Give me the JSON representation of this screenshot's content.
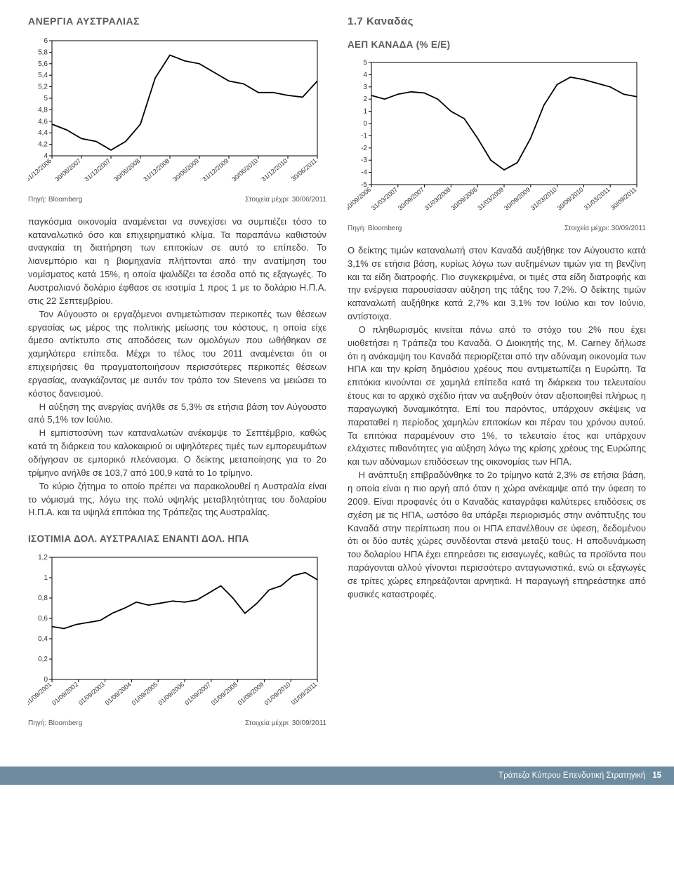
{
  "left": {
    "chart1": {
      "title": "ΑΝΕΡΓΙΑ ΑΥΣΤΡΑΛΙΑΣ",
      "type": "line",
      "ylim": [
        4,
        6
      ],
      "ytick_step": 0.2,
      "yticks": [
        "4",
        "4,2",
        "4,4",
        "4,6",
        "4,8",
        "5",
        "5,2",
        "5,4",
        "5,6",
        "5,8",
        "6"
      ],
      "x_labels": [
        "31/12/2006",
        "30/06/2007",
        "31/12/2007",
        "30/06/2008",
        "31/12/2008",
        "30/06/2009",
        "31/12/2009",
        "30/06/2010",
        "31/12/2010",
        "30/06/2011"
      ],
      "values": [
        4.55,
        4.45,
        4.3,
        4.25,
        4.1,
        4.25,
        4.55,
        5.35,
        5.75,
        5.65,
        5.6,
        5.45,
        5.3,
        5.25,
        5.1,
        5.1,
        5.05,
        5.02,
        5.3
      ],
      "line_color": "#000000",
      "background_color": "#ffffff",
      "source_label": "Πηγή: Bloomberg",
      "asof_label": "Στοιχεία μέχρι: 30/06/2011"
    },
    "para1": "παγκόσμια οικονομία αναμένεται να συνεχίσει να συμπιέζει τόσο το καταναλωτικό όσο και επιχειρηματικό κλίμα. Τα παραπάνω καθιστούν αναγκαία τη διατήρηση των επιτοκίων σε αυτό το επίπεδο. Το λιανεμπόριο και η βιομηχανία πλήττονται από την ανατίμηση του νομίσματος κατά 15%, η οποία ψαλιδίζει τα έσοδα από τις εξαγωγές. Το Αυστραλιανό δολάριο έφθασε σε ισοτιμία 1 προς 1 με το δολάριο Η.Π.Α. στις 22 Σεπτεμβρίου.",
    "para2": "Τον Αύγουστο οι εργαζόμενοι αντιμετώπισαν περικοπές των θέσεων εργασίας ως μέρος της πολιτικής μείωσης του κόστους, η οποία είχε άμεσο αντίκτυπο στις αποδόσεις των ομολόγων που ωθήθηκαν σε χαμηλότερα επίπεδα. Μέχρι το τέλος του 2011 αναμένεται ότι οι επιχειρήσεις θα πραγματοποιήσουν περισσότερες περικοπές θέσεων εργασίας, αναγκάζοντας με αυτόν τον τρόπο τον Stevens να μειώσει το κόστος δανεισμού.",
    "para3": "Η αύξηση της ανεργίας ανήλθε σε 5,3% σε ετήσια βάση τον Αύγουστο από 5,1% τον Ιούλιο.",
    "para4": "Η εμπιστοσύνη των καταναλωτών ανέκαμψε το Σεπτέμβριο, καθώς κατά τη διάρκεια του καλοκαιριού οι υψηλότερες τιμές των εμπορευμάτων οδήγησαν σε εμπορικό πλεόνασμα. Ο δείκτης μεταποίησης για το 2ο τρίμηνο ανήλθε σε 103,7 από 100,9 κατά το 1ο τρίμηνο.",
    "para5": "Το κύριο ζήτημα το οποίο πρέπει να παρακολουθεί η Αυστραλία είναι το νόμισμά της, λόγω της πολύ υψηλής μεταβλητότητας του δολαρίου Η.Π.Α. και τα υψηλά επιτόκια της Τράπεζας της Αυστραλίας.",
    "chart2": {
      "title": "ΙΣΟΤΙΜΙΑ ΔΟΛ. ΑΥΣΤΡΑΛΙΑΣ ΕΝΑΝΤΙ ΔΟΛ. ΗΠΑ",
      "type": "line",
      "ylim": [
        0,
        1.2
      ],
      "ytick_step": 0.2,
      "yticks": [
        "0",
        "0,2",
        "0,4",
        "0,6",
        "0,8",
        "1",
        "1,2"
      ],
      "x_labels": [
        "01/09/2001",
        "01/09/2002",
        "01/09/2003",
        "01/09/2004",
        "01/09/2005",
        "01/09/2006",
        "01/09/2007",
        "01/09/2008",
        "01/09/2009",
        "01/09/2010",
        "01/09/2011"
      ],
      "values": [
        0.52,
        0.5,
        0.54,
        0.56,
        0.58,
        0.65,
        0.7,
        0.76,
        0.73,
        0.75,
        0.77,
        0.76,
        0.78,
        0.85,
        0.92,
        0.8,
        0.65,
        0.75,
        0.88,
        0.92,
        1.02,
        1.05,
        0.98
      ],
      "line_color": "#000000",
      "background_color": "#ffffff",
      "source_label": "Πηγή: Bloomberg",
      "asof_label": "Στοιχεία μέχρι: 30/09/2011"
    }
  },
  "right": {
    "section_title": "1.7 Καναδάς",
    "chart1": {
      "title": "ΑΕΠ ΚΑΝΑΔΑ (% Ε/Ε)",
      "type": "line",
      "ylim": [
        -5,
        5
      ],
      "ytick_step": 1,
      "yticks": [
        "-5",
        "-4",
        "-3",
        "-2",
        "-1",
        "0",
        "1",
        "2",
        "3",
        "4",
        "5"
      ],
      "x_labels": [
        "30/09/2006",
        "31/03/2007",
        "30/09/2007",
        "31/03/2008",
        "30/09/2008",
        "31/03/2009",
        "30/09/2009",
        "31/03/2010",
        "30/09/2010",
        "31/03/2011",
        "30/09/2011"
      ],
      "values": [
        2.3,
        2.0,
        2.4,
        2.6,
        2.5,
        2.0,
        1.0,
        0.4,
        -1.2,
        -3.0,
        -3.8,
        -3.2,
        -1.2,
        1.5,
        3.2,
        3.8,
        3.6,
        3.3,
        3.0,
        2.4,
        2.2
      ],
      "line_color": "#000000",
      "background_color": "#ffffff",
      "source_label": "Πηγή: Bloomberg",
      "asof_label": "Στοιχεία μέχρι: 30/09/2011"
    },
    "para1": "Ο δείκτης τιμών καταναλωτή στον Καναδά αυξήθηκε τον Αύγουστο κατά 3,1% σε ετήσια βάση, κυρίως λόγω των αυξημένων τιμών για τη βενζίνη και τα είδη διατροφής. Πιο συγκεκριμένα, οι τιμές στα είδη διατροφής και την ενέργεια παρουσίασαν αύξηση της τάξης του 7,2%. Ο δείκτης τιμών καταναλωτή αυξήθηκε κατά 2,7% και 3,1% τον Ιούλιο και τον Ιούνιο, αντίστοιχα.",
    "para2": "Ο πληθωρισμός κινείται πάνω από το στόχο του 2% που έχει υιοθετήσει η Τράπεζα του Καναδά. Ο Διοικητής της, M. Carney δήλωσε ότι η ανάκαμψη του Καναδά περιορίζεται από την αδύναμη οικονομία των ΗΠΑ και την κρίση δημόσιου χρέους που αντιμετωπίζει η Ευρώπη. Τα επιτόκια κινούνται σε χαμηλά επίπεδα κατά τη διάρκεια του τελευταίου έτους και το αρχικό σχέδιο ήταν να αυξηθούν όταν αξιοποιηθεί πλήρως η παραγωγική δυναμικότητα. Επί του παρόντος, υπάρχουν σκέψεις να παραταθεί η περίοδος χαμηλών επιτοκίων και πέραν του χρόνου αυτού. Τα επιτόκια παραμένουν στο 1%, το τελευταίο έτος και υπάρχουν ελάχιστες πιθανότητες για αύξηση λόγω της κρίσης χρέους της Ευρώπης και των αδύναμων επιδόσεων της οικονομίας των ΗΠΑ.",
    "para3": "Η ανάπτυξη επιβραδύνθηκε το 2ο τρίμηνο κατά 2,3% σε ετήσια βάση, η οποία είναι η πιο αργή από όταν η χώρα ανέκαμψε από την ύφεση το 2009. Είναι προφανές ότι ο Καναδάς καταγράφει καλύτερες επιδόσεις σε σχέση με τις ΗΠΑ, ωστόσο θα υπάρξει περιορισμός στην ανάπτυξης του Καναδά στην περίπτωση που οι ΗΠΑ επανέλθουν σε ύφεση, δεδομένου ότι οι δύο αυτές χώρες συνδέονται στενά μεταξύ τους. Η αποδυνάμωση του δολαρίου ΗΠΑ έχει επηρεάσει τις εισαγωγές, καθώς τα προϊόντα που παράγονται αλλού γίνονται περισσότερο ανταγωνιστικά, ενώ οι εξαγωγές σε τρίτες χώρες επηρεάζονται αρνητικά. Η παραγωγή επηρεάστηκε από φυσικές καταστροφές."
  },
  "footer": {
    "text": "Τράπεζα Κύπρου Επενδυτική Στρατηγική",
    "page": "15"
  }
}
